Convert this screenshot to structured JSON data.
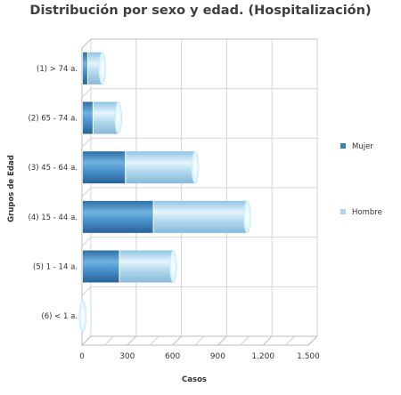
{
  "chart_data": {
    "type": "bar",
    "orientation": "horizontal",
    "stacked": true,
    "title": "Distribución por sexo y edad. (Hospitalización)",
    "xlabel": "Casos",
    "ylabel": "Grupos de Edad",
    "categories": [
      "(1) > 74 a.",
      "(2) 65 - 74 a.",
      "(3) 45 - 64 a.",
      "(4) 15 - 44 a.",
      "(5) 1 - 14 a.",
      "(6) < 1 a."
    ],
    "series": [
      {
        "name": "Mujer",
        "color": "#3a7fb8",
        "values": [
          35,
          70,
          285,
          470,
          245,
          0
        ]
      },
      {
        "name": "Hombre",
        "color": "#a9d5ee",
        "values": [
          100,
          170,
          465,
          625,
          360,
          5
        ]
      }
    ],
    "xlim": [
      0,
      1500
    ],
    "xticks": [
      0,
      300,
      600,
      900,
      1200,
      1500
    ],
    "xtick_labels": [
      "0",
      "300",
      "600",
      "900",
      "1.200",
      "1.500"
    ],
    "grid": true,
    "legend_position": "right"
  }
}
